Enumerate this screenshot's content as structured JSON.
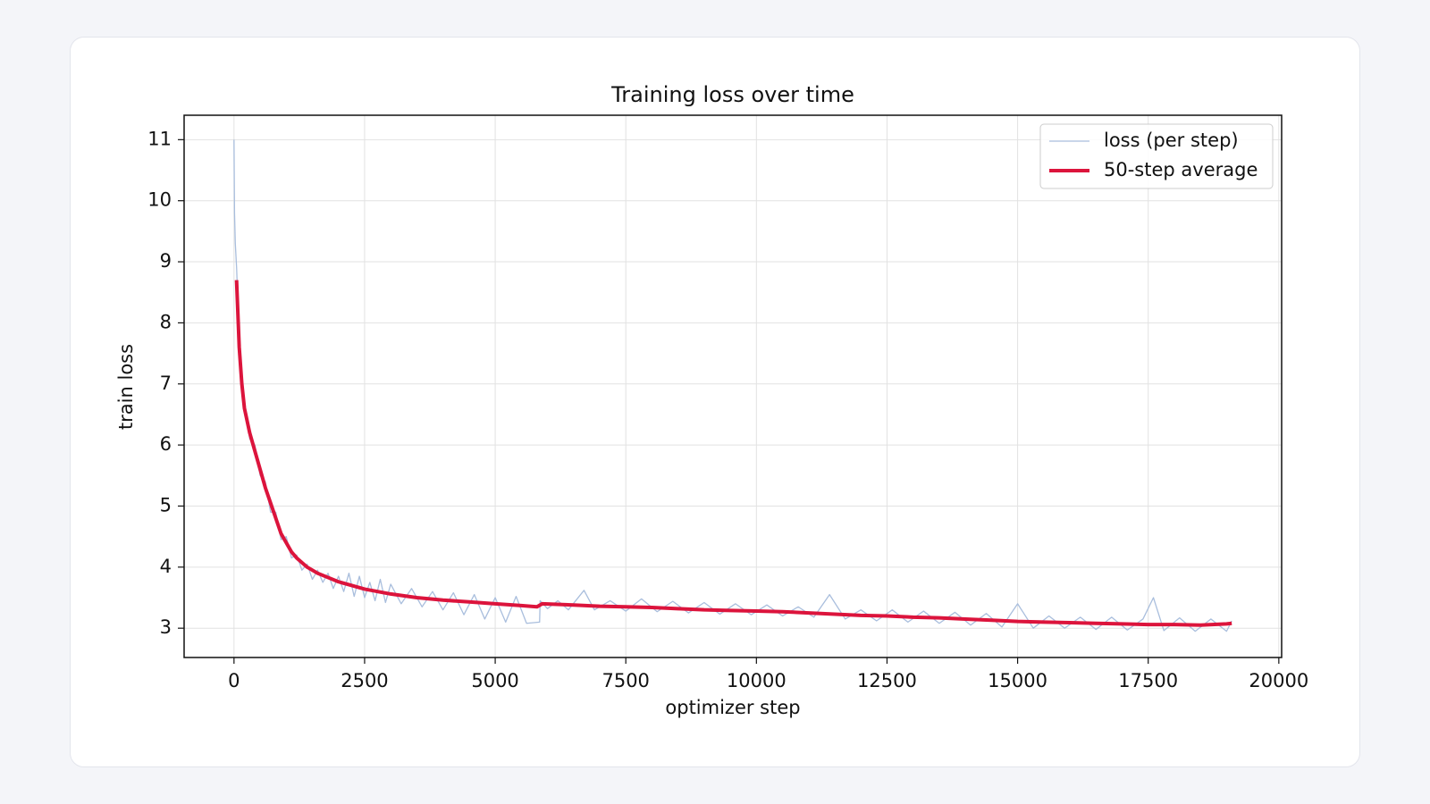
{
  "chart_data": {
    "type": "line",
    "title": "Training loss over time",
    "x_label": "optimizer step",
    "y_label": "train loss",
    "xlim": [
      -955,
      20054
    ],
    "ylim": [
      2.52,
      11.4
    ],
    "xticks": [
      0,
      2500,
      5000,
      7500,
      10000,
      12500,
      15000,
      17500,
      20000
    ],
    "yticks": [
      3,
      4,
      5,
      6,
      7,
      8,
      9,
      10,
      11
    ],
    "grid": true,
    "legend": "upper right",
    "series": [
      {
        "name": "loss (per step)",
        "color": "#a9bedd",
        "x": [
          0,
          10,
          25,
          50,
          100,
          150,
          200,
          300,
          400,
          500,
          600,
          700,
          800,
          900,
          1000,
          1100,
          1200,
          1300,
          1400,
          1500,
          1600,
          1700,
          1800,
          1900,
          2000,
          2100,
          2200,
          2300,
          2400,
          2500,
          2600,
          2700,
          2800,
          2900,
          3000,
          3200,
          3400,
          3600,
          3800,
          4000,
          4200,
          4400,
          4600,
          4800,
          5000,
          5200,
          5400,
          5600,
          5850,
          5860,
          6000,
          6200,
          6400,
          6700,
          6900,
          7200,
          7500,
          7800,
          8100,
          8400,
          8700,
          9000,
          9300,
          9600,
          9900,
          10200,
          10500,
          10800,
          11100,
          11400,
          11700,
          12000,
          12300,
          12600,
          12900,
          13200,
          13500,
          13800,
          14100,
          14400,
          14700,
          15000,
          15300,
          15600,
          15900,
          16200,
          16500,
          16800,
          17100,
          17400,
          17600,
          17800,
          18100,
          18400,
          18700,
          19000,
          19099
        ],
        "values": [
          11.0,
          9.8,
          9.3,
          8.9,
          7.7,
          7.0,
          6.7,
          6.1,
          6.0,
          5.5,
          5.4,
          4.9,
          4.9,
          4.45,
          4.5,
          4.15,
          4.2,
          3.95,
          4.05,
          3.8,
          3.95,
          3.75,
          3.9,
          3.65,
          3.85,
          3.6,
          3.9,
          3.52,
          3.85,
          3.5,
          3.75,
          3.45,
          3.8,
          3.42,
          3.72,
          3.4,
          3.65,
          3.35,
          3.6,
          3.3,
          3.58,
          3.22,
          3.55,
          3.15,
          3.5,
          3.1,
          3.52,
          3.08,
          3.1,
          3.45,
          3.32,
          3.45,
          3.3,
          3.62,
          3.3,
          3.45,
          3.28,
          3.48,
          3.27,
          3.44,
          3.25,
          3.42,
          3.23,
          3.4,
          3.22,
          3.38,
          3.2,
          3.35,
          3.18,
          3.55,
          3.15,
          3.3,
          3.12,
          3.3,
          3.1,
          3.28,
          3.08,
          3.26,
          3.05,
          3.24,
          3.02,
          3.4,
          3.0,
          3.2,
          3.0,
          3.18,
          2.98,
          3.18,
          2.97,
          3.15,
          3.5,
          2.96,
          3.17,
          2.95,
          3.15,
          2.95,
          3.12
        ]
      },
      {
        "name": "50-step average",
        "color": "#dc143c",
        "x": [
          49,
          100,
          150,
          200,
          300,
          400,
          500,
          600,
          700,
          800,
          900,
          1000,
          1100,
          1200,
          1400,
          1600,
          1800,
          2000,
          2250,
          2500,
          2750,
          3000,
          3500,
          4000,
          4500,
          5000,
          5500,
          5800,
          5900,
          6500,
          7000,
          7500,
          8000,
          8500,
          9000,
          9500,
          10000,
          10500,
          11000,
          11500,
          12000,
          12500,
          13000,
          13500,
          14000,
          14500,
          15000,
          15500,
          16000,
          16500,
          17000,
          17500,
          18000,
          18500,
          19000,
          19099
        ],
        "values": [
          8.7,
          7.6,
          7.0,
          6.6,
          6.2,
          5.9,
          5.6,
          5.3,
          5.05,
          4.8,
          4.55,
          4.4,
          4.25,
          4.15,
          4.0,
          3.9,
          3.83,
          3.76,
          3.7,
          3.64,
          3.6,
          3.56,
          3.5,
          3.46,
          3.43,
          3.4,
          3.37,
          3.35,
          3.4,
          3.38,
          3.36,
          3.35,
          3.34,
          3.32,
          3.3,
          3.29,
          3.28,
          3.27,
          3.25,
          3.23,
          3.21,
          3.2,
          3.18,
          3.17,
          3.15,
          3.13,
          3.11,
          3.1,
          3.09,
          3.08,
          3.07,
          3.06,
          3.06,
          3.05,
          3.07,
          3.08
        ]
      }
    ]
  }
}
